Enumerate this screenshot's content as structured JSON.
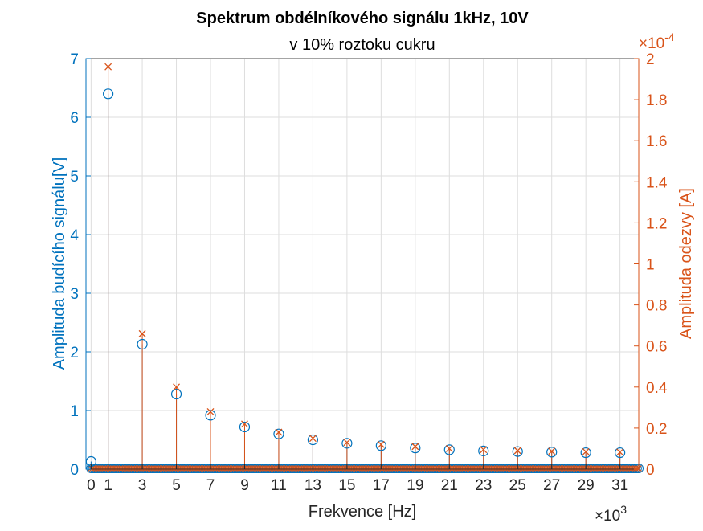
{
  "chart_data": {
    "type": "stem",
    "title": "Spektrum obdélníkového signálu 1kHz, 10V",
    "subtitle": "v 10% roztoku cukru",
    "xlabel": "Frekvence [Hz]",
    "x_exponent_base": "×10",
    "x_exponent_power": "3",
    "xlim": [
      -0.3,
      32.1
    ],
    "xticks": [
      "0",
      "1",
      "3",
      "5",
      "7",
      "9",
      "11",
      "13",
      "15",
      "17",
      "19",
      "21",
      "23",
      "25",
      "27",
      "29",
      "31"
    ],
    "ylabel_left": "Amplituda budícího signálu[V]",
    "ylim_left": [
      0,
      7
    ],
    "yticks_left": [
      "0",
      "1",
      "2",
      "3",
      "4",
      "5",
      "6",
      "7"
    ],
    "ylabel_right": "Amplituda odezvy [A]",
    "y_right_exponent_base": "×10",
    "y_right_exponent_power": "-4",
    "ylim_right": [
      0,
      2
    ],
    "yticks_right": [
      "0",
      "0.2",
      "0.4",
      "0.6",
      "0.8",
      "1",
      "1.2",
      "1.4",
      "1.6",
      "1.8",
      "2"
    ],
    "grid": true,
    "x_step": 0.1,
    "series": [
      {
        "axis": "left",
        "marker": "circle",
        "color": "#0072BD",
        "x": [
          0,
          1,
          3,
          5,
          7,
          9,
          11,
          13,
          15,
          17,
          19,
          21,
          23,
          25,
          27,
          29,
          31
        ],
        "values": [
          0.13,
          6.4,
          2.13,
          1.28,
          0.92,
          0.72,
          0.6,
          0.5,
          0.44,
          0.4,
          0.36,
          0.33,
          0.31,
          0.3,
          0.29,
          0.28,
          0.28
        ]
      },
      {
        "axis": "right",
        "marker": "x",
        "color": "#D95319",
        "x": [
          1,
          3,
          5,
          7,
          9,
          11,
          13,
          15,
          17,
          19,
          21,
          23,
          25,
          27,
          29,
          31
        ],
        "values": [
          1.96,
          0.66,
          0.4,
          0.28,
          0.22,
          0.18,
          0.15,
          0.13,
          0.12,
          0.11,
          0.1,
          0.095,
          0.09,
          0.087,
          0.085,
          0.083
        ]
      }
    ]
  }
}
